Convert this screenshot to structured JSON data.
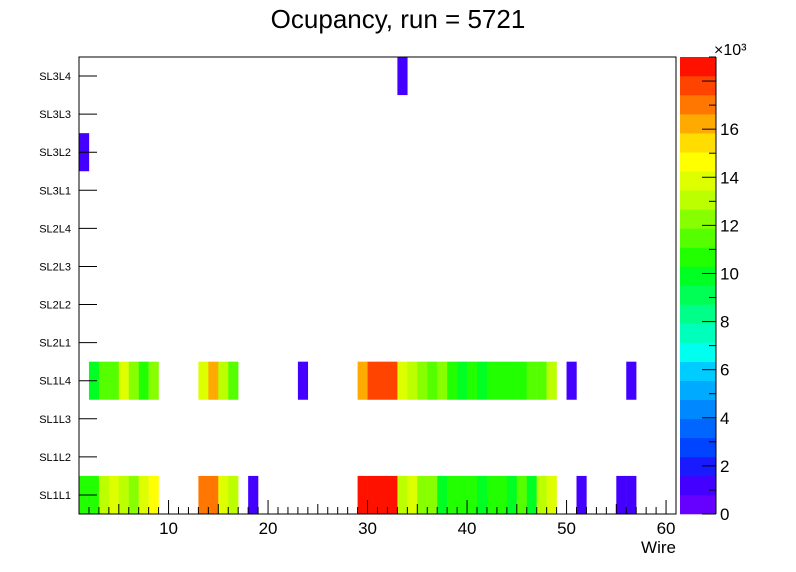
{
  "chart_data": {
    "type": "heatmap",
    "title": "Ocupancy, run = 5721",
    "xlabel": "Wire",
    "ylabel": "",
    "x_range": [
      1,
      61
    ],
    "x_ticks": [
      10,
      20,
      30,
      40,
      50,
      60
    ],
    "y_categories": [
      "SL1L1",
      "SL1L2",
      "SL1L3",
      "SL1L4",
      "SL2L1",
      "SL2L2",
      "SL2L3",
      "SL2L4",
      "SL3L1",
      "SL3L2",
      "SL3L3",
      "SL3L4"
    ],
    "z_range": [
      0,
      19000
    ],
    "z_ticks": [
      0,
      2,
      4,
      6,
      8,
      10,
      12,
      14,
      16
    ],
    "z_exponent": "×10³",
    "z_tick_scale": 1000,
    "colors": [
      "#6600ff",
      "#4400ff",
      "#1a1aff",
      "#0044ff",
      "#0066ff",
      "#0088ff",
      "#00aaff",
      "#00ccff",
      "#00ffee",
      "#00ffbb",
      "#00ff88",
      "#00ff55",
      "#00ff22",
      "#22ff00",
      "#55ff00",
      "#88ff00",
      "#bbff00",
      "#ddff00",
      "#ffff00",
      "#ffdd00",
      "#ffaa00",
      "#ff7700",
      "#ff4400",
      "#ff1100"
    ],
    "cells": [
      {
        "layer": "SL1L1",
        "values": [
          [
            1,
            10500
          ],
          [
            2,
            11000
          ],
          [
            3,
            13000
          ],
          [
            4,
            13500
          ],
          [
            5,
            13000
          ],
          [
            6,
            12500
          ],
          [
            7,
            13500
          ],
          [
            8,
            14500
          ],
          [
            13,
            17000
          ],
          [
            14,
            17000
          ],
          [
            15,
            14000
          ],
          [
            16,
            13000
          ],
          [
            18,
            800
          ],
          [
            29,
            18500
          ],
          [
            30,
            19000
          ],
          [
            31,
            19000
          ],
          [
            32,
            19000
          ],
          [
            33,
            13000
          ],
          [
            34,
            13500
          ],
          [
            35,
            12000
          ],
          [
            36,
            12000
          ],
          [
            37,
            10000
          ],
          [
            38,
            10500
          ],
          [
            39,
            11000
          ],
          [
            40,
            10500
          ],
          [
            41,
            10000
          ],
          [
            42,
            11000
          ],
          [
            43,
            11000
          ],
          [
            44,
            10000
          ],
          [
            45,
            11500
          ],
          [
            46,
            10000
          ],
          [
            47,
            13000
          ],
          [
            48,
            14000
          ],
          [
            51,
            800
          ],
          [
            55,
            800
          ],
          [
            56,
            800
          ]
        ]
      },
      {
        "layer": "SL1L4",
        "values": [
          [
            2,
            9500
          ],
          [
            3,
            11500
          ],
          [
            4,
            11500
          ],
          [
            5,
            13500
          ],
          [
            6,
            12000
          ],
          [
            7,
            11000
          ],
          [
            8,
            12500
          ],
          [
            13,
            14000
          ],
          [
            14,
            16000
          ],
          [
            15,
            13000
          ],
          [
            16,
            11500
          ],
          [
            23,
            800
          ],
          [
            29,
            16500
          ],
          [
            30,
            18000
          ],
          [
            31,
            18000
          ],
          [
            32,
            18000
          ],
          [
            33,
            14000
          ],
          [
            34,
            13000
          ],
          [
            35,
            12000
          ],
          [
            36,
            11500
          ],
          [
            37,
            12000
          ],
          [
            38,
            10500
          ],
          [
            39,
            10000
          ],
          [
            40,
            10500
          ],
          [
            41,
            10000
          ],
          [
            42,
            11000
          ],
          [
            43,
            10500
          ],
          [
            44,
            10500
          ],
          [
            45,
            10500
          ],
          [
            46,
            11500
          ],
          [
            47,
            11500
          ],
          [
            48,
            13000
          ],
          [
            50,
            800
          ],
          [
            56,
            800
          ]
        ]
      },
      {
        "layer": "SL3L2",
        "values": [
          [
            1,
            800
          ]
        ]
      },
      {
        "layer": "SL3L4",
        "values": [
          [
            33,
            800
          ]
        ]
      }
    ]
  }
}
